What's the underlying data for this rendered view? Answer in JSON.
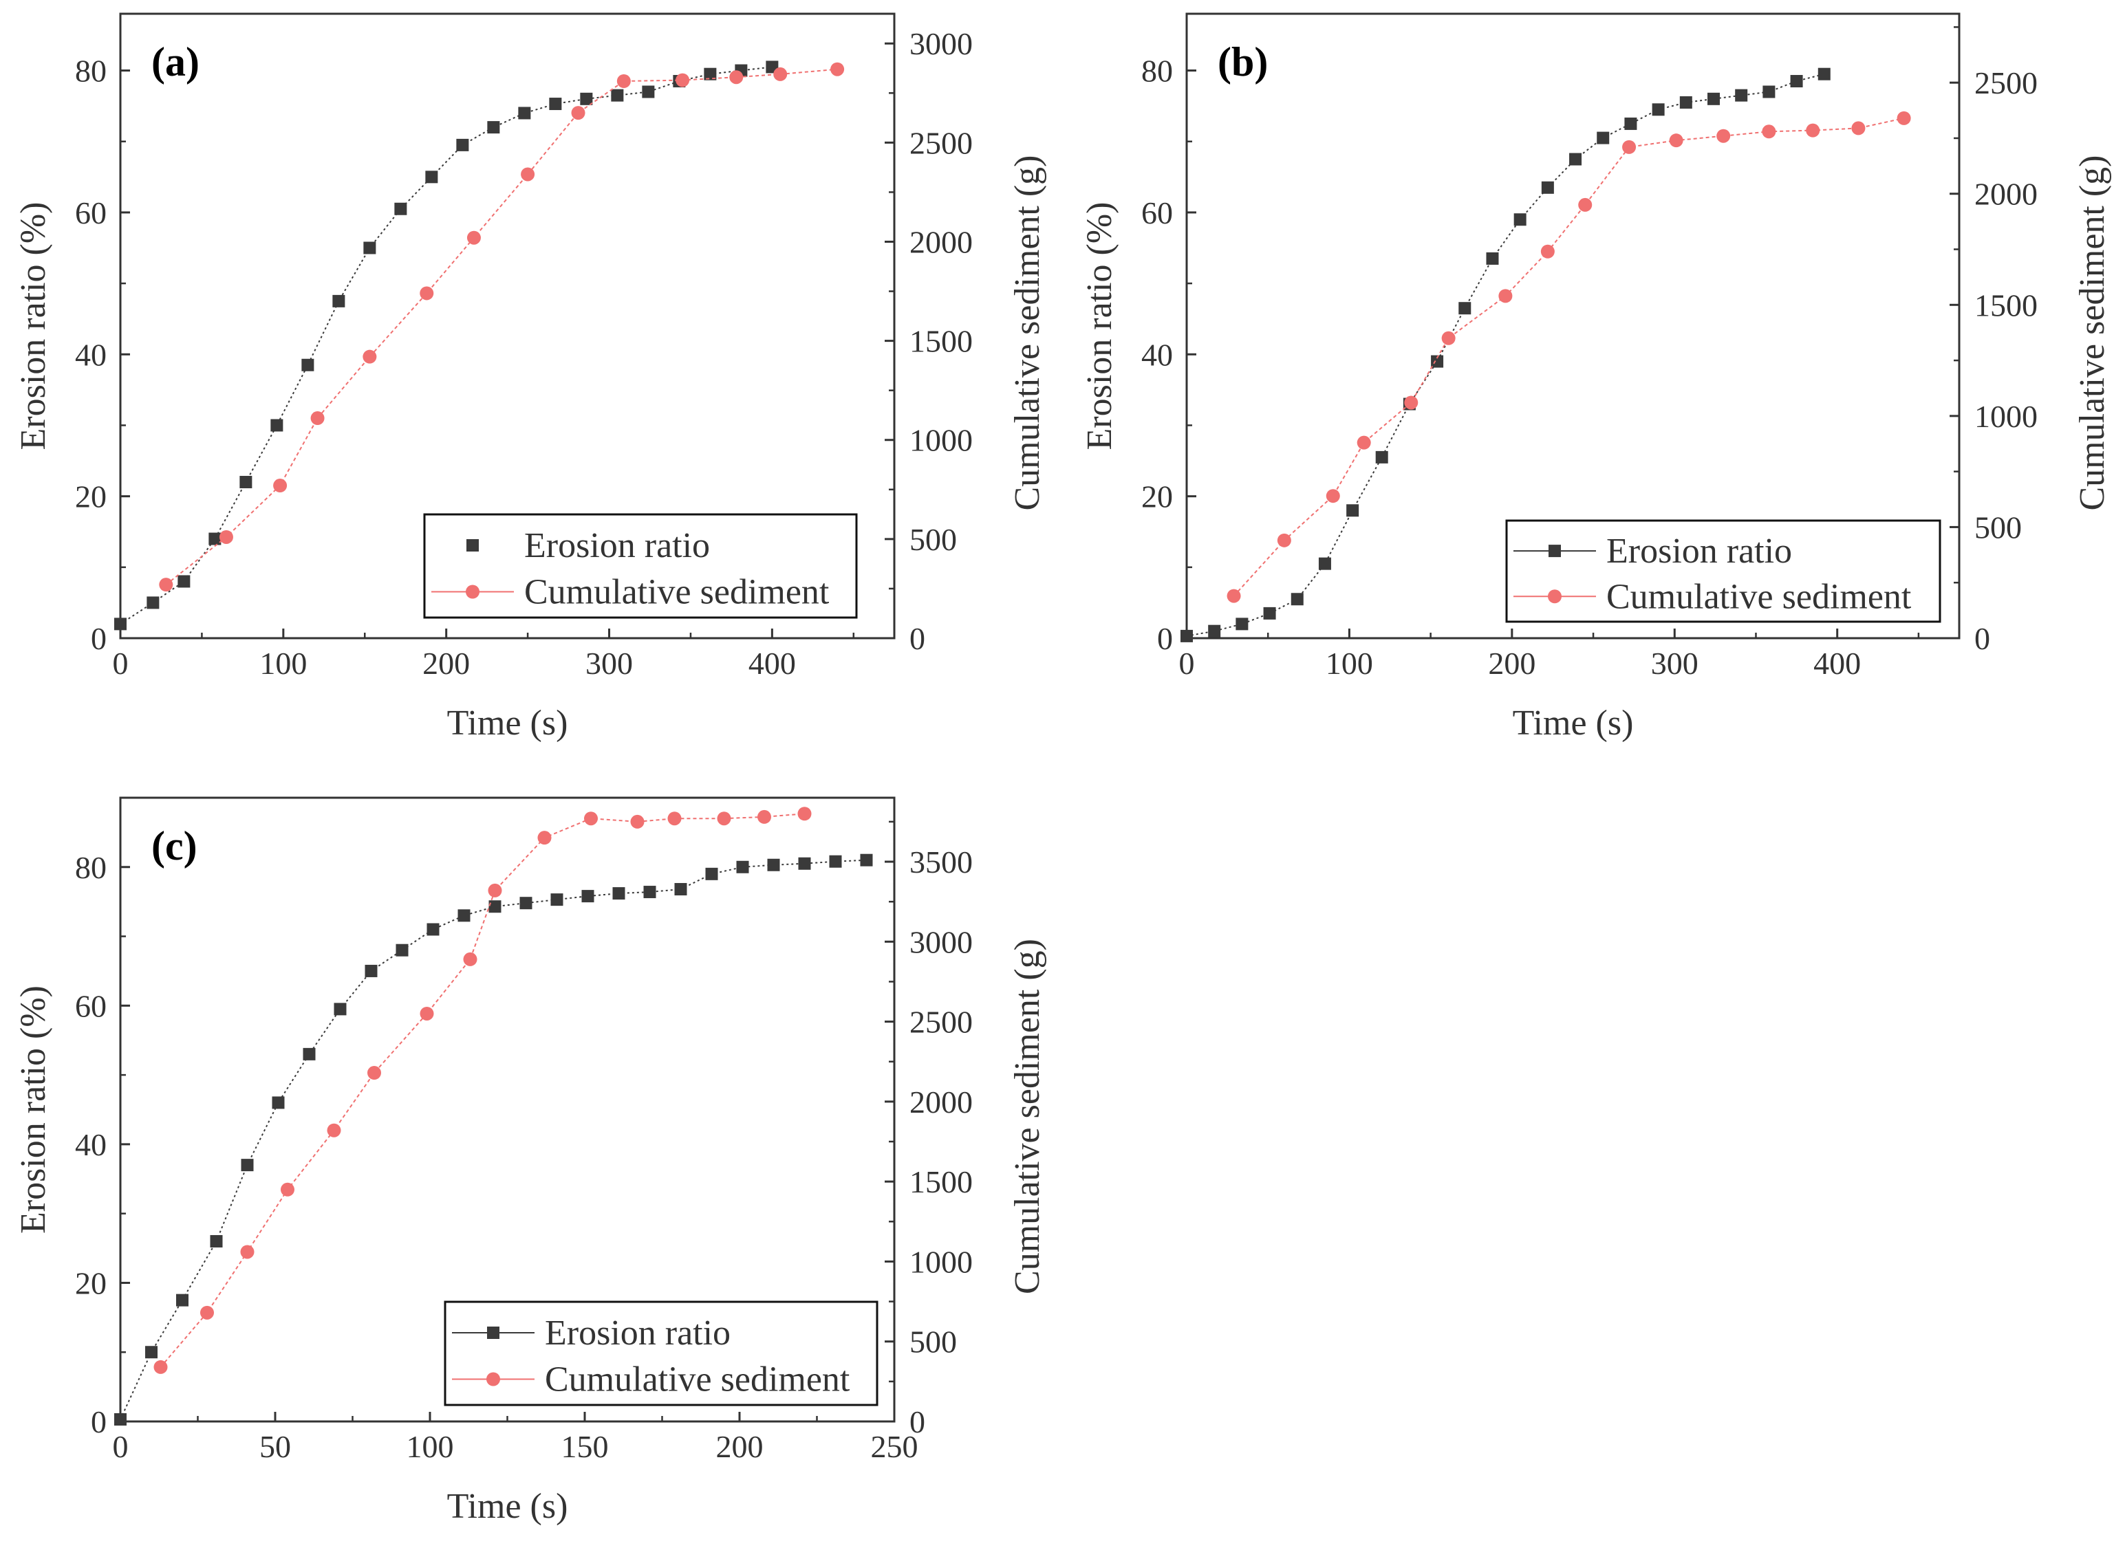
{
  "colors": {
    "erosion": "#3a3a3a",
    "sediment": "#f07070",
    "axis": "#333333"
  },
  "chart_data": [
    {
      "panel": "(a)",
      "type": "line",
      "xlabel": "Time (s)",
      "ylabel": "Erosion ratio (%)",
      "y2label": "Cumulative sediment (g)",
      "xlim": [
        0,
        475
      ],
      "ylim": [
        0,
        88
      ],
      "y2lim": [
        0,
        3150
      ],
      "xticks": [
        "0",
        "100",
        "200",
        "300",
        "400"
      ],
      "yticks": [
        "0",
        "20",
        "40",
        "60",
        "80"
      ],
      "y2ticks": [
        "0",
        "500",
        "1000",
        "1500",
        "2000",
        "2500",
        "3000"
      ],
      "legend": {
        "position": "bottom-right",
        "entries": [
          "Erosion ratio",
          "Cumulative sediment"
        ],
        "style": "markers-only"
      },
      "series": [
        {
          "name": "Erosion ratio",
          "axis": "left",
          "marker": "square",
          "x": [
            0,
            20,
            39,
            58,
            77,
            96,
            115,
            134,
            153,
            172,
            191,
            210,
            229,
            248,
            267,
            286,
            305,
            324,
            343,
            362,
            381,
            400
          ],
          "y": [
            2,
            5,
            8,
            14,
            22,
            30,
            38.5,
            47.5,
            55,
            60.5,
            65,
            69.5,
            72,
            74,
            75.3,
            76,
            76.5,
            77,
            78.5,
            79.5,
            80,
            80.5
          ]
        },
        {
          "name": "Cumulative sediment",
          "axis": "right",
          "marker": "circle",
          "x": [
            28,
            65,
            98,
            121,
            153,
            188,
            217,
            250,
            281,
            309,
            345,
            378,
            405,
            440
          ],
          "y": [
            270,
            510,
            770,
            1110,
            1420,
            1740,
            2020,
            2340,
            2650,
            2810,
            2815,
            2830,
            2845,
            2870
          ]
        }
      ]
    },
    {
      "panel": "(b)",
      "type": "line",
      "xlabel": "Time (s)",
      "ylabel": "Erosion ratio (%)",
      "y2label": "Cumulative sediment (g)",
      "xlim": [
        0,
        475
      ],
      "ylim": [
        0,
        88
      ],
      "y2lim": [
        0,
        2810
      ],
      "xticks": [
        "0",
        "100",
        "200",
        "300",
        "400"
      ],
      "yticks": [
        "0",
        "20",
        "40",
        "60",
        "80"
      ],
      "y2ticks": [
        "0",
        "500",
        "1000",
        "1500",
        "2000",
        "2500"
      ],
      "legend": {
        "position": "bottom-right",
        "entries": [
          "Erosion ratio",
          "Cumulative sediment"
        ],
        "style": "line-and-marker"
      },
      "series": [
        {
          "name": "Erosion ratio",
          "axis": "left",
          "marker": "square",
          "x": [
            0,
            17,
            34,
            51,
            68,
            85,
            102,
            120,
            137,
            154,
            171,
            188,
            205,
            222,
            239,
            256,
            273,
            290,
            307,
            324,
            341,
            358,
            375,
            392
          ],
          "y": [
            0.3,
            1,
            2,
            3.5,
            5.5,
            10.5,
            18,
            25.5,
            33,
            39,
            46.5,
            53.5,
            59,
            63.5,
            67.5,
            70.5,
            72.5,
            74.5,
            75.5,
            76,
            76.5,
            77,
            78.5,
            79.5
          ]
        },
        {
          "name": "Cumulative sediment",
          "axis": "right",
          "marker": "circle",
          "x": [
            29,
            60,
            90,
            109,
            138,
            161,
            196,
            222,
            245,
            272,
            301,
            330,
            358,
            385,
            413,
            441
          ],
          "y": [
            190,
            440,
            640,
            880,
            1060,
            1350,
            1540,
            1740,
            1950,
            2210,
            2240,
            2260,
            2280,
            2285,
            2295,
            2340
          ]
        }
      ]
    },
    {
      "panel": "(c)",
      "type": "line",
      "xlabel": "Time (s)",
      "ylabel": "Erosion ratio (%)",
      "y2label": "Cumulative sediment (g)",
      "xlim": [
        0,
        250
      ],
      "ylim": [
        0,
        90
      ],
      "y2lim": [
        0,
        3900
      ],
      "xticks": [
        "0",
        "50",
        "100",
        "150",
        "200",
        "250"
      ],
      "yticks": [
        "0",
        "20",
        "40",
        "60",
        "80"
      ],
      "y2ticks": [
        "0",
        "500",
        "1000",
        "1500",
        "2000",
        "2500",
        "3000",
        "3500"
      ],
      "legend": {
        "position": "bottom-right",
        "entries": [
          "Erosion ratio",
          "Cumulative sediment"
        ],
        "style": "line-and-marker"
      },
      "series": [
        {
          "name": "Erosion ratio",
          "axis": "left",
          "marker": "square",
          "x": [
            0,
            10,
            20,
            31,
            41,
            51,
            61,
            71,
            81,
            91,
            101,
            111,
            121,
            131,
            141,
            151,
            161,
            171,
            181,
            191,
            201,
            211,
            221,
            231,
            241
          ],
          "y": [
            0.3,
            10,
            17.5,
            26,
            37,
            46,
            53,
            59.5,
            65,
            68,
            71,
            73,
            74.3,
            74.8,
            75.3,
            75.8,
            76.2,
            76.4,
            76.8,
            79,
            80,
            80.3,
            80.5,
            80.8,
            81
          ]
        },
        {
          "name": "Cumulative sediment",
          "axis": "right",
          "marker": "circle",
          "x": [
            13,
            28,
            41,
            54,
            69,
            82,
            99,
            113,
            121,
            137,
            152,
            167,
            179,
            195,
            208,
            221
          ],
          "y": [
            340,
            680,
            1060,
            1450,
            1820,
            2180,
            2550,
            2890,
            3320,
            3650,
            3770,
            3750,
            3770,
            3770,
            3780,
            3800
          ]
        }
      ]
    }
  ]
}
